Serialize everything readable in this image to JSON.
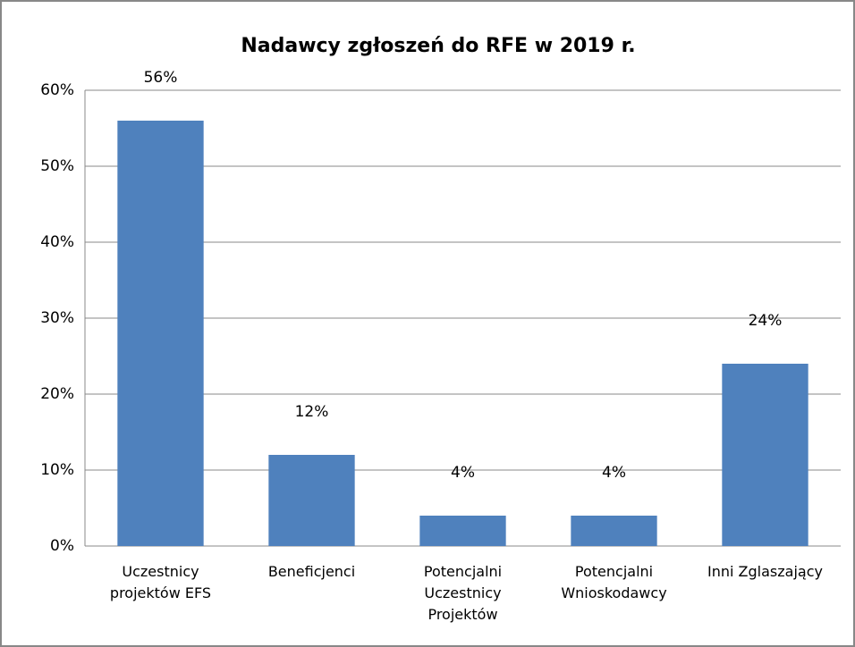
{
  "chart_data": {
    "type": "bar",
    "title": "Nadawcy zgłoszeń do RFE w 2019 r.",
    "categories": [
      "Uczestnicy projektów EFS",
      "Beneficjenci",
      "Potencjalni Uczestnicy Projektów",
      "Potencjalni Wnioskodawcy",
      "Inni Zglaszający"
    ],
    "values": [
      56,
      12,
      4,
      4,
      24
    ],
    "value_labels": [
      "56%",
      "12%",
      "4%",
      "4%",
      "24%"
    ],
    "color": "#4f81bd",
    "ylim": [
      0,
      60
    ],
    "yticks": [
      {
        "value": 0,
        "label": "0%"
      },
      {
        "value": 10,
        "label": "10%"
      },
      {
        "value": 20,
        "label": "20%"
      },
      {
        "value": 30,
        "label": "30%"
      },
      {
        "value": 40,
        "label": "40%"
      },
      {
        "value": 50,
        "label": "50%"
      },
      {
        "value": 60,
        "label": "60%"
      }
    ],
    "grid": true
  }
}
